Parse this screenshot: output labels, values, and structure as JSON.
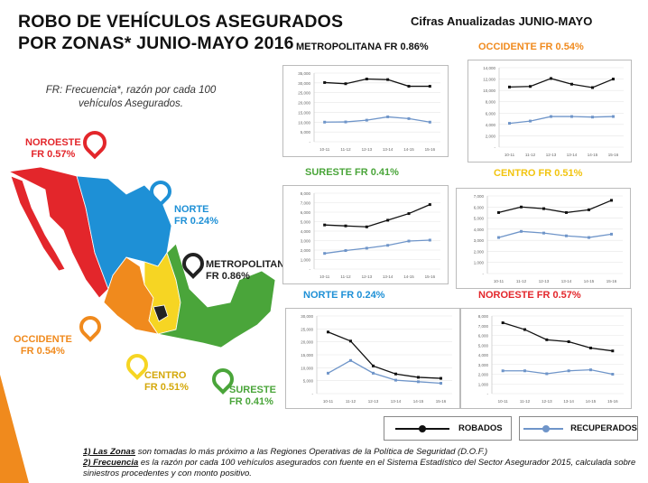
{
  "title_line1": "ROBO DE VEHÍCULOS ASEGURADOS",
  "title_line2": "POR ZONAS* JUNIO-MAYO 2016",
  "subtitle": "Cifras Anualizadas JUNIO-MAYO",
  "note": "FR: Frecuencia*, razón por cada 100 vehículos Asegurados.",
  "colors": {
    "robados": "#111111",
    "recuperados": "#6f95c9",
    "noroeste": "#e3262b",
    "norte": "#1e90d6",
    "metropolitana": "#222222",
    "occidente": "#f08a1d",
    "centro": "#f6d523",
    "sureste": "#4aa53a"
  },
  "map_labels": [
    {
      "name": "NOROESTE",
      "fr": "FR 0.57%"
    },
    {
      "name": "NORTE",
      "fr": "FR 0.24%"
    },
    {
      "name": "METROPOLITANA",
      "fr": "FR 0.86%"
    },
    {
      "name": "OCCIDENTE",
      "fr": "FR 0.54%"
    },
    {
      "name": "CENTRO",
      "fr": "FR 0.51%"
    },
    {
      "name": "SURESTE",
      "fr": "FR 0.41%"
    }
  ],
  "legend": {
    "robados": "ROBADOS",
    "recuperados": "RECUPERADOS"
  },
  "footnote1_head": "1) Las Zonas",
  "footnote1": " son tomadas  lo más próximo a las Regiones Operativas de la Política de Seguridad (D.O.F.)",
  "footnote2_head": "2) Frecuencia",
  "footnote2": " es la razón por cada 100 vehículos asegurados con fuente en el Sistema Estadístico del Sector Asegurador 2015, calculada sobre siniestros procedentes y con monto positivo.",
  "chart_data": [
    {
      "type": "line",
      "title": "METROPOLITANA FR 0.86%",
      "title_color": "#111111",
      "categories": [
        "10-11",
        "11-12",
        "12-13",
        "13-14",
        "14-15",
        "15-16"
      ],
      "ylim": [
        0,
        35000
      ],
      "yticks": [
        "-",
        "5,000",
        "10,000",
        "15,000",
        "20,000",
        "25,000",
        "30,000",
        "35,000"
      ],
      "series": [
        {
          "name": "ROBADOS",
          "values": [
            30200,
            29600,
            32000,
            31700,
            28300,
            28300
          ]
        },
        {
          "name": "RECUPERADOS",
          "values": [
            10000,
            10100,
            11000,
            12700,
            11800,
            10000
          ]
        }
      ],
      "grid": true
    },
    {
      "type": "line",
      "title": "OCCIDENTE FR 0.54%",
      "title_color": "#f08a1d",
      "categories": [
        "10-11",
        "11-12",
        "12-13",
        "13-14",
        "14-15",
        "15-16"
      ],
      "ylim": [
        0,
        14000
      ],
      "yticks": [
        "-",
        "2,000",
        "4,000",
        "6,000",
        "8,000",
        "10,000",
        "12,000",
        "14,000"
      ],
      "series": [
        {
          "name": "ROBADOS",
          "values": [
            10600,
            10700,
            12100,
            11100,
            10500,
            12000
          ]
        },
        {
          "name": "RECUPERADOS",
          "values": [
            4200,
            4600,
            5400,
            5400,
            5300,
            5400
          ]
        }
      ],
      "grid": true
    },
    {
      "type": "line",
      "title": "SURESTE FR 0.41%",
      "title_color": "#4aa53a",
      "categories": [
        "10-11",
        "11-12",
        "12-13",
        "13-14",
        "14-15",
        "15-16"
      ],
      "ylim": [
        0,
        8000
      ],
      "yticks": [
        "-",
        "1,000",
        "2,000",
        "3,000",
        "4,000",
        "5,000",
        "6,000",
        "7,000",
        "8,000"
      ],
      "series": [
        {
          "name": "ROBADOS",
          "values": [
            4650,
            4550,
            4450,
            5150,
            5850,
            6800
          ]
        },
        {
          "name": "RECUPERADOS",
          "values": [
            1650,
            1950,
            2200,
            2500,
            2950,
            3050
          ]
        }
      ],
      "grid": true
    },
    {
      "type": "line",
      "title": "CENTRO FR 0.51%",
      "title_color": "#f2c40f",
      "categories": [
        "10-11",
        "11-12",
        "12-13",
        "13-14",
        "14-15",
        "15-16"
      ],
      "ylim": [
        0,
        7000
      ],
      "yticks": [
        "-",
        "1,000",
        "2,000",
        "3,000",
        "4,000",
        "5,000",
        "6,000",
        "7,000"
      ],
      "series": [
        {
          "name": "ROBADOS",
          "values": [
            5500,
            6000,
            5850,
            5500,
            5750,
            6600
          ]
        },
        {
          "name": "RECUPERADOS",
          "values": [
            3250,
            3800,
            3650,
            3400,
            3250,
            3550
          ]
        }
      ],
      "grid": true
    },
    {
      "type": "line",
      "title": "NORTE FR 0.24%",
      "title_color": "#1e90d6",
      "categories": [
        "10-11",
        "11-12",
        "12-13",
        "13-14",
        "14-15",
        "15-16"
      ],
      "ylim": [
        0,
        30000
      ],
      "yticks": [
        "-",
        "5,000",
        "10,000",
        "15,000",
        "20,000",
        "25,000",
        "30,000"
      ],
      "series": [
        {
          "name": "ROBADOS",
          "values": [
            23800,
            20300,
            10700,
            7600,
            6300,
            5900
          ]
        },
        {
          "name": "RECUPERADOS",
          "values": [
            7900,
            12800,
            7900,
            5200,
            4600,
            4000
          ]
        }
      ],
      "grid": true
    },
    {
      "type": "line",
      "title": "NOROESTE FR 0.57%",
      "title_color": "#e3262b",
      "categories": [
        "10-11",
        "11-12",
        "12-13",
        "13-14",
        "14-15",
        "15-16"
      ],
      "ylim": [
        0,
        8000
      ],
      "yticks": [
        "-",
        "1,000",
        "2,000",
        "3,000",
        "4,000",
        "5,000",
        "6,000",
        "7,000",
        "8,000"
      ],
      "series": [
        {
          "name": "ROBADOS",
          "values": [
            7300,
            6600,
            5550,
            5350,
            4700,
            4400
          ]
        },
        {
          "name": "RECUPERADOS",
          "values": [
            2350,
            2350,
            2050,
            2350,
            2450,
            2000
          ]
        }
      ],
      "grid": true
    }
  ]
}
